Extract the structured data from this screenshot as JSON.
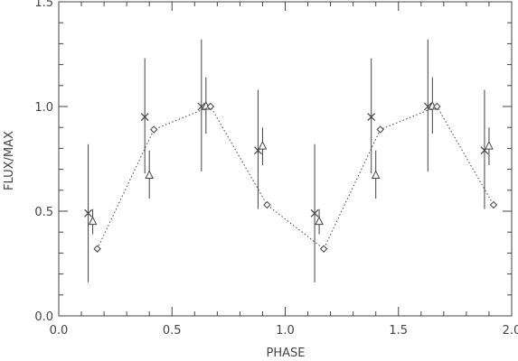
{
  "chart_data": {
    "type": "scatter",
    "title": "",
    "xlabel": "PHASE",
    "ylabel": "FLUX/MAX",
    "xlim": [
      0.0,
      2.0
    ],
    "ylim": [
      0.0,
      1.5
    ],
    "x_ticks": [
      0.0,
      0.5,
      1.0,
      1.5,
      2.0
    ],
    "x_tick_labels": [
      "0.0",
      "0.5",
      "1.0",
      "1.5",
      "2.0"
    ],
    "y_ticks": [
      0.0,
      0.5,
      1.0,
      1.5
    ],
    "y_tick_labels": [
      "0.0",
      "0.5",
      "1.0",
      "1.5"
    ],
    "grid": false,
    "colors": {
      "axis": "#444444",
      "data": "#444444"
    },
    "series": [
      {
        "marker": "x",
        "points": [
          {
            "x": 0.13,
            "y": 0.49,
            "yerr_low": 0.33,
            "yerr_high": 0.33
          },
          {
            "x": 0.38,
            "y": 0.95,
            "yerr_low": 0.27,
            "yerr_high": 0.28
          },
          {
            "x": 0.63,
            "y": 1.0,
            "yerr_low": 0.31,
            "yerr_high": 0.32
          },
          {
            "x": 0.88,
            "y": 0.79,
            "yerr_low": 0.28,
            "yerr_high": 0.29
          },
          {
            "x": 1.13,
            "y": 0.49,
            "yerr_low": 0.33,
            "yerr_high": 0.33
          },
          {
            "x": 1.38,
            "y": 0.95,
            "yerr_low": 0.27,
            "yerr_high": 0.28
          },
          {
            "x": 1.63,
            "y": 1.0,
            "yerr_low": 0.31,
            "yerr_high": 0.32
          },
          {
            "x": 1.88,
            "y": 0.79,
            "yerr_low": 0.28,
            "yerr_high": 0.29
          }
        ]
      },
      {
        "marker": "triangle",
        "points": [
          {
            "x": 0.15,
            "y": 0.45,
            "yerr_low": 0.06,
            "yerr_high": 0.06
          },
          {
            "x": 0.4,
            "y": 0.67,
            "yerr_low": 0.11,
            "yerr_high": 0.12
          },
          {
            "x": 0.65,
            "y": 1.0,
            "yerr_low": 0.13,
            "yerr_high": 0.14
          },
          {
            "x": 0.9,
            "y": 0.81,
            "yerr_low": 0.09,
            "yerr_high": 0.09
          },
          {
            "x": 1.15,
            "y": 0.45,
            "yerr_low": 0.06,
            "yerr_high": 0.06
          },
          {
            "x": 1.4,
            "y": 0.67,
            "yerr_low": 0.11,
            "yerr_high": 0.12
          },
          {
            "x": 1.65,
            "y": 1.0,
            "yerr_low": 0.13,
            "yerr_high": 0.14
          },
          {
            "x": 1.9,
            "y": 0.81,
            "yerr_low": 0.09,
            "yerr_high": 0.09
          }
        ]
      },
      {
        "marker": "diamond",
        "line": "dotted",
        "points": [
          {
            "x": 0.17,
            "y": 0.32
          },
          {
            "x": 0.42,
            "y": 0.89
          },
          {
            "x": 0.67,
            "y": 1.0
          },
          {
            "x": 0.92,
            "y": 0.53
          },
          {
            "x": 1.17,
            "y": 0.32
          },
          {
            "x": 1.42,
            "y": 0.89
          },
          {
            "x": 1.67,
            "y": 1.0
          },
          {
            "x": 1.92,
            "y": 0.53
          }
        ]
      }
    ]
  }
}
